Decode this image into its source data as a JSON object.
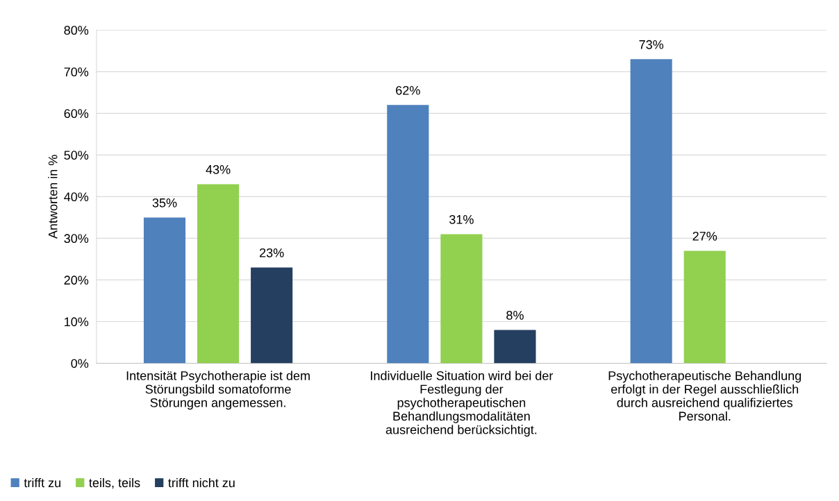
{
  "chart_data": {
    "type": "bar",
    "ylabel": "Antworten in %",
    "categories": [
      "Intensität Psychotherapie ist dem\nStörungsbild somatoforme\nStörungen angemessen.",
      "Individuelle Situation wird bei der\nFestlegung der\npsychotherapeutischen\nBehandlungsmodalitäten\nausreichend berücksichtigt.",
      "Psychotherapeutische Behandlung\nerfolgt in der Regel ausschließlich\ndurch ausreichend qualifiziertes\nPersonal."
    ],
    "series": [
      {
        "name": "trifft zu",
        "color": "#4f81bd",
        "values": [
          35,
          62,
          73
        ],
        "value_labels": [
          "35%",
          "62%",
          "73%"
        ]
      },
      {
        "name": "teils, teils",
        "color": "#92d050",
        "values": [
          43,
          31,
          27
        ],
        "value_labels": [
          "43%",
          "31%",
          "27%"
        ]
      },
      {
        "name": "trifft nicht zu",
        "color": "#243f60",
        "values": [
          23,
          8,
          null
        ],
        "value_labels": [
          "23%",
          "8%",
          null
        ]
      }
    ],
    "ylim": [
      0,
      80
    ],
    "yticks": [
      {
        "value": 0,
        "label": "0%"
      },
      {
        "value": 10,
        "label": "10%"
      },
      {
        "value": 20,
        "label": "20%"
      },
      {
        "value": 30,
        "label": "30%"
      },
      {
        "value": 40,
        "label": "40%"
      },
      {
        "value": 50,
        "label": "50%"
      },
      {
        "value": 60,
        "label": "60%"
      },
      {
        "value": 70,
        "label": "70%"
      },
      {
        "value": 80,
        "label": "80%"
      }
    ],
    "grid": "y",
    "legend": "bottom left"
  }
}
